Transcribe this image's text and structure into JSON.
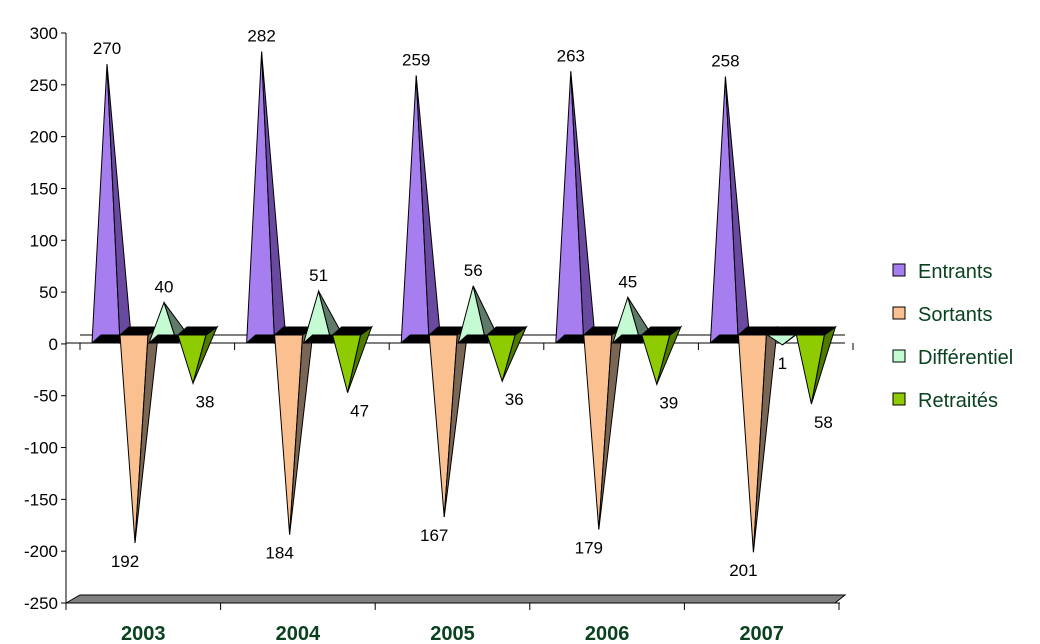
{
  "chart_data": {
    "type": "bar",
    "style": "3d-cone",
    "categories": [
      "2003",
      "2004",
      "2005",
      "2006",
      "2007"
    ],
    "series": [
      {
        "name": "Entrants",
        "values": [
          270,
          282,
          259,
          263,
          258
        ],
        "labels": [
          "270",
          "282",
          "259",
          "263",
          "258"
        ],
        "color": "#a77ef0",
        "shade": "#6a4aa0"
      },
      {
        "name": "Sortants",
        "values": [
          -192,
          -184,
          -167,
          -179,
          -201
        ],
        "labels": [
          "192",
          "184",
          "167",
          "179",
          "201"
        ],
        "color": "#fbc08f",
        "shade": "#7a6655"
      },
      {
        "name": "Différentiel",
        "values": [
          40,
          51,
          56,
          45,
          -1
        ],
        "labels": [
          "40",
          "51",
          "56",
          "45",
          "1"
        ],
        "color": "#c5fbd3",
        "shade": "#5f7a68"
      },
      {
        "name": "Retraités",
        "values": [
          -38,
          -47,
          -36,
          -39,
          -58
        ],
        "labels": [
          "38",
          "47",
          "36",
          "39",
          "58"
        ],
        "color": "#8ecb00",
        "shade": "#4f7a00"
      }
    ],
    "ylim": [
      -250,
      300
    ],
    "yticks": [
      "300",
      "250",
      "200",
      "150",
      "100",
      "50",
      "0",
      "-50",
      "-100",
      "-150",
      "-200",
      "-250"
    ],
    "legend_position": "right",
    "grid": false,
    "title": "",
    "xlabel": "",
    "ylabel": ""
  }
}
